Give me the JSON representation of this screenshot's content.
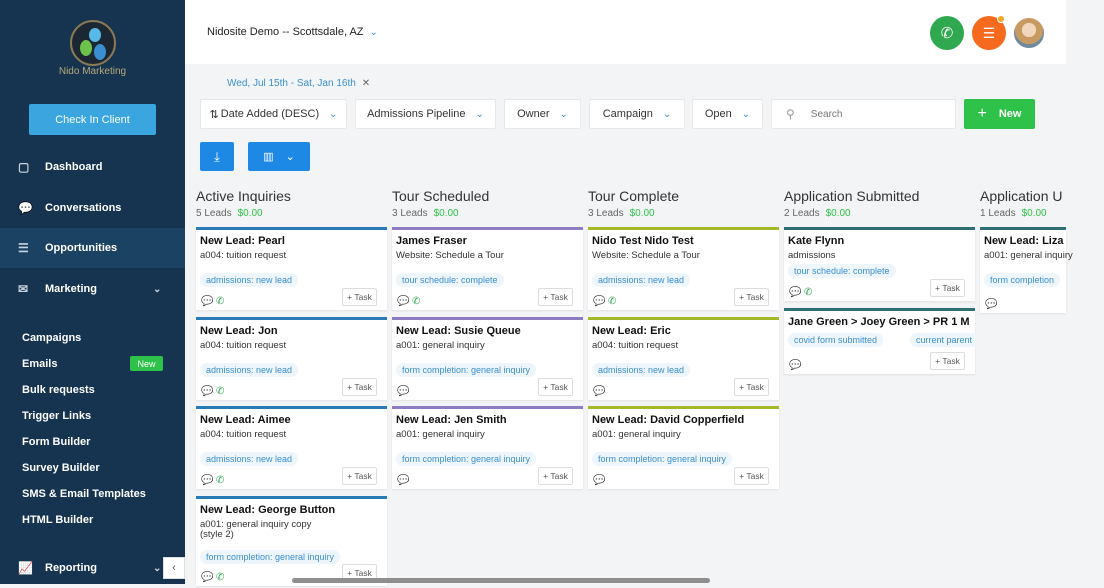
{
  "brand": {
    "logo_text": "Nido Marketing"
  },
  "sidebar": {
    "checkin_label": "Check In Client",
    "nav": [
      {
        "label": "Dashboard",
        "icon": "dashboard-icon"
      },
      {
        "label": "Conversations",
        "icon": "chat-icon"
      },
      {
        "label": "Opportunities",
        "icon": "opportunities-icon"
      },
      {
        "label": "Marketing",
        "icon": "mail-icon"
      }
    ],
    "marketing_sub": [
      "Campaigns",
      "Emails",
      "Bulk requests",
      "Trigger Links",
      "Form Builder",
      "Survey Builder",
      "SMS & Email Templates",
      "HTML Builder"
    ],
    "emails_badge": "New",
    "reporting_label": "Reporting"
  },
  "header": {
    "location": "Nidosite Demo -- Scottsdale, AZ"
  },
  "date_filter": "Wed, Jul 15th - Sat, Jan 16th",
  "filters": {
    "sort": "Date Added (DESC)",
    "pipeline": "Admissions Pipeline",
    "owner": "Owner",
    "campaign": "Campaign",
    "status": "Open",
    "search_placeholder": "Search",
    "new_label": "New"
  },
  "colors": {
    "sidebar": "#16344f",
    "accent": "#1e88e5",
    "green": "#2fc24a",
    "orange": "#f56a1f"
  },
  "columns": [
    {
      "title": "Active Inquiries",
      "leads": "5 Leads",
      "amount": "$0.00",
      "color": "#2a7ab5",
      "cards": [
        {
          "title": "New Lead: Pearl",
          "desc": "a004: tuition request",
          "tags": [
            "admissions: new lead"
          ],
          "phone": true
        },
        {
          "title": "New Lead: Jon",
          "desc": "a004: tuition request",
          "tags": [
            "admissions: new lead"
          ],
          "phone": true
        },
        {
          "title": "New Lead: Aimee",
          "desc": "a004: tuition request",
          "tags": [
            "admissions: new lead"
          ],
          "phone": true
        },
        {
          "title": "New Lead: George Button",
          "desc": "a001: general inquiry copy (style 2)",
          "tags": [
            "form completion: general inquiry"
          ],
          "phone": true
        }
      ]
    },
    {
      "title": "Tour Scheduled",
      "leads": "3 Leads",
      "amount": "$0.00",
      "color": "#8e7cc3",
      "cards": [
        {
          "title": "James Fraser",
          "desc": "Website: Schedule a Tour",
          "tags": [
            "tour schedule: complete"
          ],
          "phone": true
        },
        {
          "title": "New Lead: Susie Queue",
          "desc": "a001: general inquiry",
          "tags": [
            "form completion: general inquiry"
          ],
          "phone": false
        },
        {
          "title": "New Lead: Jen Smith",
          "desc": "a001: general inquiry",
          "tags": [
            "form completion: general inquiry"
          ],
          "phone": false
        }
      ]
    },
    {
      "title": "Tour Complete",
      "leads": "3 Leads",
      "amount": "$0.00",
      "color": "#a5b828",
      "cards": [
        {
          "title": "Nido Test Nido Test",
          "desc": "Website: Schedule a Tour",
          "tags": [
            "admissions: new lead"
          ],
          "phone": true
        },
        {
          "title": "New Lead: Eric",
          "desc": "a004: tuition request",
          "tags": [
            "admissions: new lead"
          ],
          "phone": false
        },
        {
          "title": "New Lead: David Copperfield",
          "desc": "a001: general inquiry",
          "tags": [
            "form completion: general inquiry"
          ],
          "phone": false
        }
      ]
    },
    {
      "title": "Application Submitted",
      "leads": "2 Leads",
      "amount": "$0.00",
      "color": "#2f6f73",
      "cards": [
        {
          "title": "Kate Flynn",
          "desc": "admissions",
          "tags": [
            "tour schedule: complete"
          ],
          "phone": true
        },
        {
          "title": "Jane Green > Joey Green > PR 1 M",
          "desc": "",
          "tags": [
            "covid form submitted",
            "current parent"
          ],
          "phone": false
        }
      ]
    },
    {
      "title": "Application U",
      "leads": "1 Leads",
      "amount": "$0.00",
      "color": "#2f6f73",
      "cards": [
        {
          "title": "New Lead: Liza",
          "desc": "a001: general inquiry",
          "tags": [
            "form completion"
          ],
          "phone": false
        }
      ]
    }
  ],
  "task_label": "+ Task"
}
